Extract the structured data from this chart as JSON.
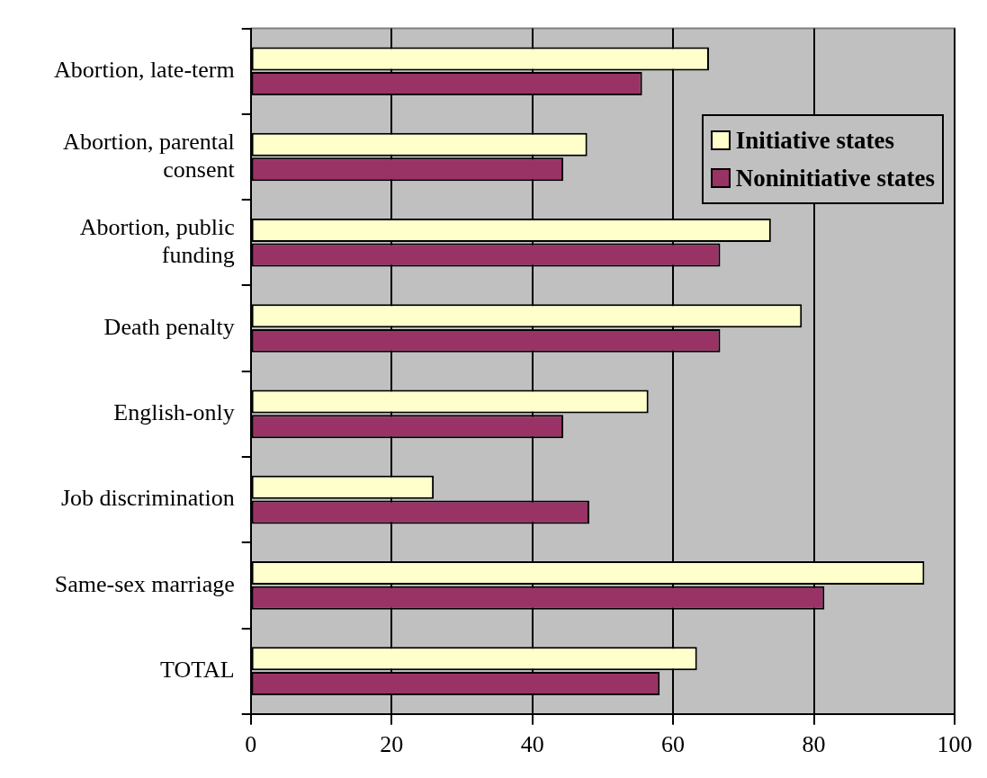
{
  "chart_data": {
    "type": "bar",
    "orientation": "horizontal",
    "categories": [
      "Abortion, late-term",
      "Abortion, parental consent",
      "Abortion, public funding",
      "Death penalty",
      "English-only",
      "Job discrimination",
      "Same-sex marriage",
      "TOTAL"
    ],
    "series": [
      {
        "name": "Initiative states",
        "color": "#ffffcc",
        "values": [
          65.1,
          47.8,
          73.9,
          78.3,
          56.5,
          26.0,
          95.7,
          63.4
        ]
      },
      {
        "name": "Noninitiative states",
        "color": "#993366",
        "values": [
          55.6,
          44.4,
          66.7,
          66.7,
          44.4,
          48.1,
          81.5,
          58.1
        ]
      }
    ],
    "xlim": [
      0,
      100
    ],
    "xticks": [
      0,
      20,
      40,
      60,
      80,
      100
    ],
    "grid": "x",
    "legend": "top right"
  }
}
